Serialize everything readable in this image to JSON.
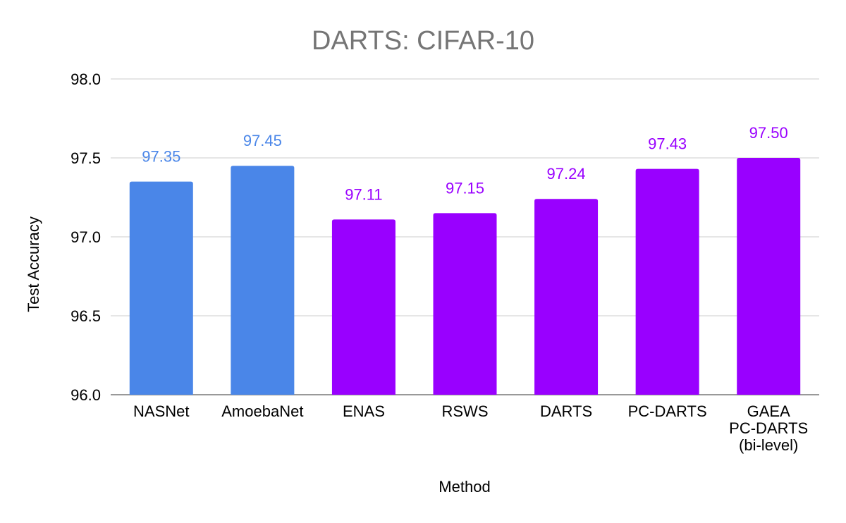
{
  "chart_data": {
    "type": "bar",
    "title": "DARTS: CIFAR-10",
    "xlabel": "Method",
    "ylabel": "Test Accuracy",
    "ylim": [
      96.0,
      98.0
    ],
    "yticks": [
      "96.0",
      "96.5",
      "97.0",
      "97.5",
      "98.0"
    ],
    "grid": true,
    "categories": [
      [
        "NASNet"
      ],
      [
        "AmoebaNet"
      ],
      [
        "ENAS"
      ],
      [
        "RSWS"
      ],
      [
        "DARTS"
      ],
      [
        "PC-DARTS"
      ],
      [
        "GAEA",
        "PC-DARTS",
        "(bi-level)"
      ]
    ],
    "values": [
      97.35,
      97.45,
      97.11,
      97.15,
      97.24,
      97.43,
      97.5
    ],
    "data_labels": [
      "97.35",
      "97.45",
      "97.11",
      "97.15",
      "97.24",
      "97.43",
      "97.50"
    ],
    "bar_colors": [
      "#4a86e8",
      "#4a86e8",
      "#9900ff",
      "#9900ff",
      "#9900ff",
      "#9900ff",
      "#9900ff"
    ]
  }
}
